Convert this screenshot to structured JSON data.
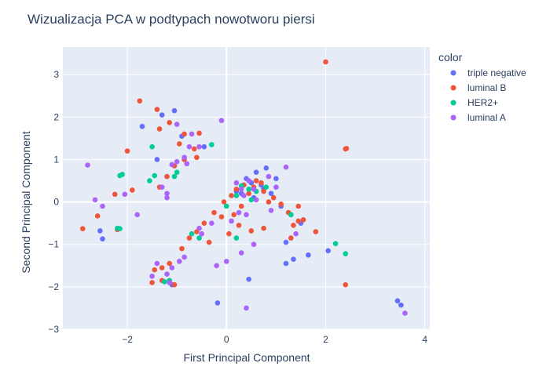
{
  "chart_data": {
    "type": "scatter",
    "title": "Wizualizacja PCA w podtypach nowotworu piersi",
    "xlabel": "First Principal Component",
    "ylabel": "Second Principal Component",
    "xlim": [
      -3.3,
      4.1
    ],
    "ylim": [
      -3.0,
      3.65
    ],
    "xticks": [
      -2,
      0,
      2,
      4
    ],
    "yticks": [
      -3,
      -2,
      -1,
      0,
      1,
      2,
      3
    ],
    "tick_labels": {
      "x": [
        "−2",
        "0",
        "2",
        "4"
      ],
      "y": [
        "−3",
        "−2",
        "−1",
        "0",
        "1",
        "2",
        "3"
      ]
    },
    "grid": true,
    "legend": {
      "title": "color",
      "placement": "right"
    },
    "series": [
      {
        "name": "triple negative",
        "color": "#636efa",
        "points": [
          [
            -1.3,
            2.05
          ],
          [
            -1.05,
            2.15
          ],
          [
            -1.7,
            1.78
          ],
          [
            -1.4,
            1.0
          ],
          [
            -0.9,
            1.55
          ],
          [
            -0.45,
            1.3
          ],
          [
            -2.55,
            -0.68
          ],
          [
            -2.5,
            -0.87
          ],
          [
            0.6,
            0.7
          ],
          [
            0.8,
            0.8
          ],
          [
            1.0,
            0.55
          ],
          [
            0.4,
            0.55
          ],
          [
            0.3,
            0.2
          ],
          [
            0.55,
            0.1
          ],
          [
            0.7,
            0.4
          ],
          [
            0.9,
            0.2
          ],
          [
            1.1,
            -0.1
          ],
          [
            1.3,
            -0.3
          ],
          [
            1.5,
            -0.5
          ],
          [
            1.2,
            -0.95
          ],
          [
            1.35,
            -1.35
          ],
          [
            1.65,
            -1.25
          ],
          [
            2.05,
            -1.15
          ],
          [
            1.2,
            -1.45
          ],
          [
            0.45,
            -1.82
          ],
          [
            -0.18,
            -2.38
          ],
          [
            3.45,
            -2.33
          ],
          [
            3.52,
            -2.43
          ],
          [
            -1.1,
            -1.95
          ],
          [
            0.2,
            0.25
          ],
          [
            0.5,
            0.45
          ],
          [
            0.75,
            0.3
          ]
        ]
      },
      {
        "name": "luminal B",
        "color": "#ef553b",
        "points": [
          [
            2.0,
            3.3
          ],
          [
            2.4,
            1.25
          ],
          [
            2.42,
            1.26
          ],
          [
            -1.75,
            2.38
          ],
          [
            -1.4,
            2.18
          ],
          [
            -1.15,
            1.87
          ],
          [
            -1.35,
            1.72
          ],
          [
            -0.85,
            1.6
          ],
          [
            -0.55,
            1.62
          ],
          [
            -0.95,
            1.37
          ],
          [
            -0.65,
            1.25
          ],
          [
            -0.6,
            1.05
          ],
          [
            -2.0,
            1.2
          ],
          [
            -0.85,
            1.0
          ],
          [
            -1.05,
            0.85
          ],
          [
            -1.2,
            0.6
          ],
          [
            -1.35,
            0.35
          ],
          [
            -2.25,
            0.18
          ],
          [
            -1.9,
            0.28
          ],
          [
            -2.2,
            -0.65
          ],
          [
            -2.6,
            -0.33
          ],
          [
            -2.9,
            -0.63
          ],
          [
            -0.05,
            0.0
          ],
          [
            0.1,
            0.15
          ],
          [
            0.2,
            0.3
          ],
          [
            0.35,
            0.4
          ],
          [
            0.45,
            0.2
          ],
          [
            0.55,
            0.35
          ],
          [
            0.6,
            0.5
          ],
          [
            0.7,
            0.45
          ],
          [
            0.75,
            0.25
          ],
          [
            0.85,
            0.0
          ],
          [
            0.95,
            0.1
          ],
          [
            1.1,
            -0.05
          ],
          [
            1.25,
            -0.25
          ],
          [
            1.35,
            -0.55
          ],
          [
            1.45,
            -0.45
          ],
          [
            1.55,
            -0.42
          ],
          [
            1.8,
            -0.7
          ],
          [
            1.3,
            -0.85
          ],
          [
            1.45,
            -0.1
          ],
          [
            -0.1,
            -0.35
          ],
          [
            -0.25,
            -0.25
          ],
          [
            -0.45,
            -0.5
          ],
          [
            -0.6,
            -0.7
          ],
          [
            -0.75,
            -0.85
          ],
          [
            -0.35,
            -0.95
          ],
          [
            0.05,
            -0.75
          ],
          [
            0.25,
            -0.55
          ],
          [
            0.5,
            -0.68
          ],
          [
            0.75,
            -0.62
          ],
          [
            -0.9,
            -1.1
          ],
          [
            -1.15,
            -1.45
          ],
          [
            -1.3,
            -1.55
          ],
          [
            -1.45,
            -1.6
          ],
          [
            -1.5,
            -1.9
          ],
          [
            -1.3,
            -1.85
          ],
          [
            -1.05,
            -1.95
          ],
          [
            2.4,
            -1.95
          ],
          [
            0.15,
            -0.3
          ],
          [
            0.3,
            -0.1
          ]
        ]
      },
      {
        "name": "HER2+",
        "color": "#00cc96",
        "points": [
          [
            -1.5,
            1.3
          ],
          [
            -0.3,
            1.35
          ],
          [
            -2.1,
            0.65
          ],
          [
            -2.15,
            0.62
          ],
          [
            -1.55,
            0.5
          ],
          [
            -1.45,
            0.62
          ],
          [
            -1.0,
            0.7
          ],
          [
            -1.05,
            0.6
          ],
          [
            -2.2,
            -0.62
          ],
          [
            -2.15,
            -0.63
          ],
          [
            0.3,
            0.38
          ],
          [
            0.45,
            0.3
          ],
          [
            0.6,
            0.25
          ],
          [
            0.5,
            0.05
          ],
          [
            0.2,
            0.15
          ],
          [
            0.0,
            -0.1
          ],
          [
            0.8,
            0.35
          ],
          [
            1.3,
            -0.3
          ],
          [
            0.2,
            -0.85
          ],
          [
            2.2,
            -0.98
          ],
          [
            2.4,
            -1.22
          ],
          [
            -0.55,
            -0.85
          ],
          [
            -0.7,
            -0.75
          ],
          [
            -1.15,
            -1.85
          ],
          [
            -1.25,
            -1.88
          ]
        ]
      },
      {
        "name": "luminal A",
        "color": "#ab63fa",
        "points": [
          [
            -2.8,
            0.87
          ],
          [
            -1.0,
            1.83
          ],
          [
            -0.7,
            1.6
          ],
          [
            -0.75,
            1.3
          ],
          [
            -0.55,
            1.3
          ],
          [
            -1.0,
            0.95
          ],
          [
            -0.8,
            0.9
          ],
          [
            -0.85,
            1.05
          ],
          [
            -1.1,
            0.88
          ],
          [
            -1.3,
            0.35
          ],
          [
            -1.2,
            0.2
          ],
          [
            -2.05,
            0.18
          ],
          [
            -2.65,
            0.05
          ],
          [
            -2.5,
            -0.1
          ],
          [
            -1.8,
            -0.3
          ],
          [
            -1.2,
            0.1
          ],
          [
            -0.1,
            1.92
          ],
          [
            0.3,
            0.3
          ],
          [
            0.45,
            0.5
          ],
          [
            0.55,
            0.3
          ],
          [
            0.35,
            0.15
          ],
          [
            0.6,
            0.05
          ],
          [
            0.25,
            -0.25
          ],
          [
            0.4,
            -0.3
          ],
          [
            0.9,
            -0.2
          ],
          [
            1.0,
            0.35
          ],
          [
            0.85,
            0.6
          ],
          [
            1.2,
            0.82
          ],
          [
            1.4,
            -0.75
          ],
          [
            0.1,
            -0.45
          ],
          [
            0.55,
            -1.0
          ],
          [
            0.3,
            -1.2
          ],
          [
            0.0,
            -1.4
          ],
          [
            -0.2,
            -1.5
          ],
          [
            -0.55,
            -0.62
          ],
          [
            -0.3,
            -0.5
          ],
          [
            -0.85,
            -1.3
          ],
          [
            -0.95,
            -1.4
          ],
          [
            -1.1,
            -1.55
          ],
          [
            -1.2,
            -1.7
          ],
          [
            -1.4,
            -1.45
          ],
          [
            -1.5,
            -1.75
          ],
          [
            -1.15,
            -1.9
          ],
          [
            0.4,
            -2.5
          ],
          [
            3.6,
            -2.62
          ],
          [
            -0.5,
            -0.75
          ],
          [
            0.2,
            0.45
          ]
        ]
      }
    ]
  }
}
